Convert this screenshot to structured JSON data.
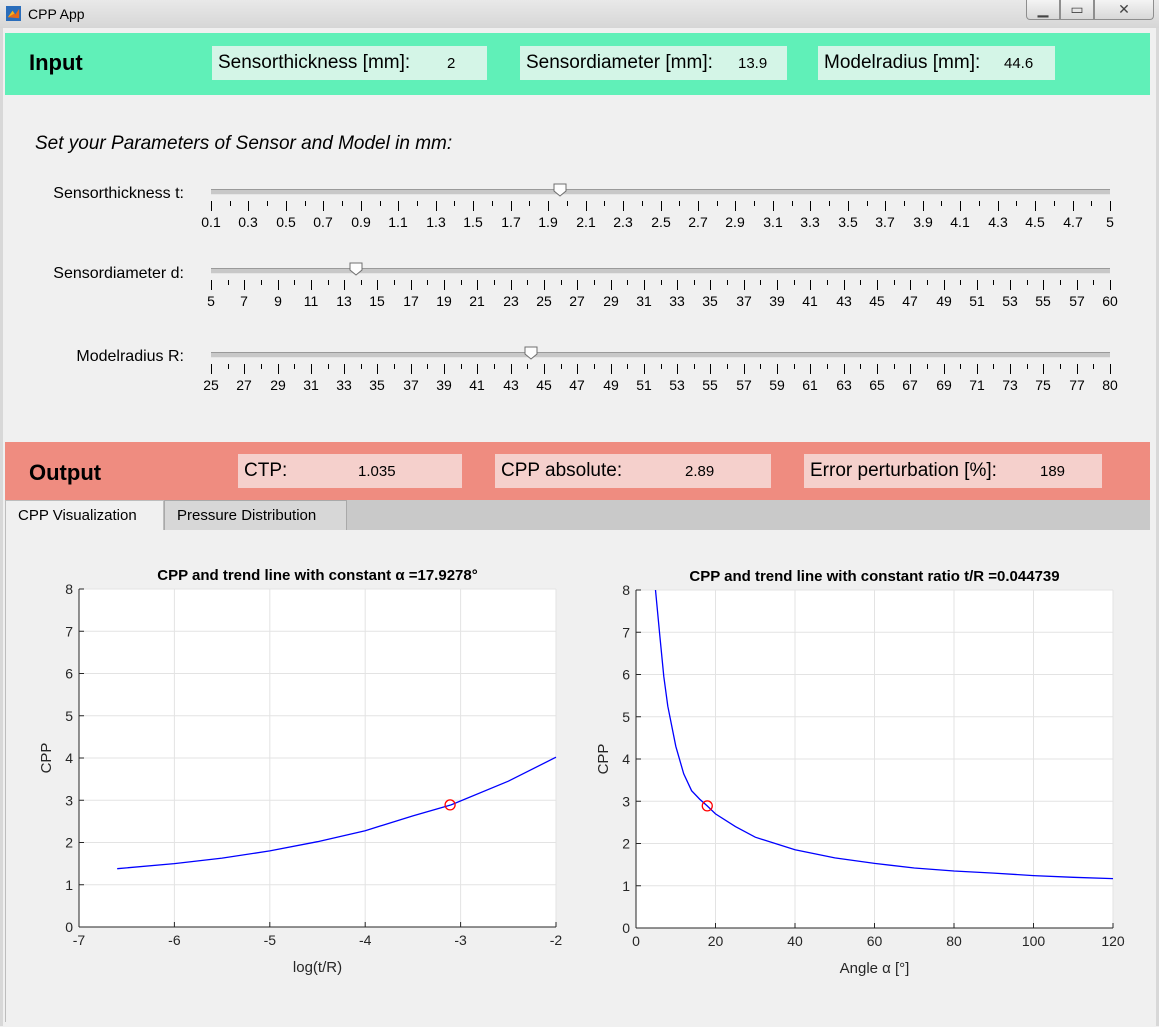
{
  "window": {
    "title": "CPP App",
    "icon": "matlab-icon",
    "min_glyph": "▁",
    "max_glyph": "▭",
    "close_glyph": "✕"
  },
  "input": {
    "title": "Input",
    "sensorthickness_label": "Sensorthickness [mm]:",
    "sensorthickness_value": "2",
    "sensordiameter_label": "Sensordiameter [mm]:",
    "sensordiameter_value": "13.9",
    "modelradius_label": "Modelradius [mm]:",
    "modelradius_value": "44.6"
  },
  "parameters": {
    "heading": "Set your Parameters of Sensor and Model in mm:",
    "sliders": [
      {
        "label": "Sensorthickness t:",
        "min": 0.1,
        "max": 5,
        "value": 2,
        "major_ticks": [
          "0.1",
          "0.3",
          "0.5",
          "0.7",
          "0.9",
          "1.1",
          "1.3",
          "1.5",
          "1.7",
          "1.9",
          "2.1",
          "2.3",
          "2.5",
          "2.7",
          "2.9",
          "3.1",
          "3.3",
          "3.5",
          "3.7",
          "3.9",
          "4.1",
          "4.3",
          "4.5",
          "4.7",
          "5"
        ]
      },
      {
        "label": "Sensordiameter d:",
        "min": 5,
        "max": 60,
        "value": 13.9,
        "major_ticks": [
          "5",
          "7",
          "9",
          "11",
          "13",
          "15",
          "17",
          "19",
          "21",
          "23",
          "25",
          "27",
          "29",
          "31",
          "33",
          "35",
          "37",
          "39",
          "41",
          "43",
          "45",
          "47",
          "49",
          "51",
          "53",
          "55",
          "57",
          "60"
        ]
      },
      {
        "label": "Modelradius R:",
        "min": 25,
        "max": 80,
        "value": 44.6,
        "major_ticks": [
          "25",
          "27",
          "29",
          "31",
          "33",
          "35",
          "37",
          "39",
          "41",
          "43",
          "45",
          "47",
          "49",
          "51",
          "53",
          "55",
          "57",
          "59",
          "61",
          "63",
          "65",
          "67",
          "69",
          "71",
          "73",
          "75",
          "77",
          "80"
        ]
      }
    ]
  },
  "output": {
    "title": "Output",
    "ctp_label": "CTP:",
    "ctp_value": "1.035",
    "cpp_label": "CPP absolute:",
    "cpp_value": "2.89",
    "error_label": "Error perturbation [%]:",
    "error_value": "189"
  },
  "tabs": [
    {
      "label": "CPP Visualization",
      "active": true
    },
    {
      "label": "Pressure Distribution",
      "active": false
    }
  ],
  "chart_data": [
    {
      "type": "line",
      "title": "CPP  and  trend  line  with  constant  α  =17.9278°",
      "xlabel": "log(t/R)",
      "ylabel": "CPP",
      "xlim": [
        -7,
        -2
      ],
      "ylim": [
        0,
        8
      ],
      "xticks": [
        "-7",
        "-6",
        "-5",
        "-4",
        "-3",
        "-2"
      ],
      "yticks": [
        "0",
        "1",
        "2",
        "3",
        "4",
        "5",
        "6",
        "7",
        "8"
      ],
      "grid": true,
      "series": [
        {
          "color": "#0000ff",
          "x": [
            -6.6,
            -6.0,
            -5.5,
            -5.0,
            -4.5,
            -4.0,
            -3.5,
            -3.1,
            -2.5,
            -2.0
          ],
          "y": [
            1.38,
            1.5,
            1.63,
            1.8,
            2.02,
            2.28,
            2.63,
            2.89,
            3.45,
            4.02
          ]
        }
      ],
      "marker": {
        "x": -3.11,
        "y": 2.89,
        "color": "#ff0000",
        "shape": "circle"
      }
    },
    {
      "type": "line",
      "title": "CPP and trend line with constant ratio t/R =0.044739",
      "xlabel": "Angle  α  [°]",
      "ylabel": "CPP",
      "xlim": [
        0,
        120
      ],
      "ylim": [
        0,
        8
      ],
      "xticks": [
        "0",
        "20",
        "40",
        "60",
        "80",
        "100",
        "120"
      ],
      "yticks": [
        "0",
        "1",
        "2",
        "3",
        "4",
        "5",
        "6",
        "7",
        "8"
      ],
      "grid": true,
      "series": [
        {
          "color": "#0000ff",
          "x": [
            4.9,
            6,
            7,
            8,
            10,
            12,
            14,
            16,
            17.9,
            20,
            25,
            30,
            40,
            50,
            60,
            70,
            80,
            90,
            100,
            110,
            120
          ],
          "y": [
            8.0,
            6.9,
            5.95,
            5.25,
            4.3,
            3.65,
            3.25,
            3.05,
            2.89,
            2.7,
            2.4,
            2.15,
            1.85,
            1.66,
            1.53,
            1.42,
            1.35,
            1.3,
            1.24,
            1.2,
            1.17
          ]
        }
      ],
      "marker": {
        "x": 17.93,
        "y": 2.89,
        "color": "#ff0000",
        "shape": "circle"
      }
    }
  ]
}
